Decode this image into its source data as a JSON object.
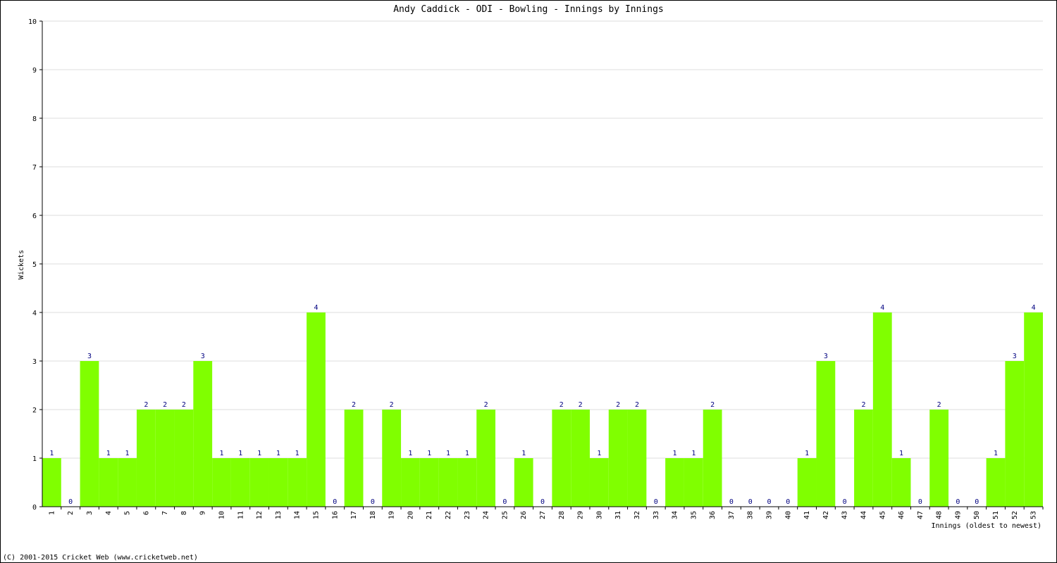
{
  "chart_data": {
    "type": "bar",
    "title": "Andy Caddick - ODI - Bowling - Innings by Innings",
    "y_label": "Wickets",
    "x_label": "Innings (oldest to newest)",
    "footer": "(C) 2001-2015 Cricket Web (www.cricketweb.net)",
    "categories": [
      "1",
      "2",
      "3",
      "4",
      "5",
      "6",
      "7",
      "8",
      "9",
      "10",
      "11",
      "12",
      "13",
      "14",
      "15",
      "16",
      "17",
      "18",
      "19",
      "20",
      "21",
      "22",
      "23",
      "24",
      "25",
      "26",
      "27",
      "28",
      "29",
      "30",
      "31",
      "32",
      "33",
      "34",
      "35",
      "36",
      "37",
      "38",
      "39",
      "40",
      "41",
      "42",
      "43",
      "44",
      "45",
      "46",
      "47",
      "48",
      "49",
      "50",
      "51",
      "52",
      "53"
    ],
    "values": [
      1,
      0,
      3,
      1,
      1,
      2,
      2,
      2,
      3,
      1,
      1,
      1,
      1,
      1,
      4,
      0,
      2,
      0,
      2,
      1,
      1,
      1,
      1,
      2,
      0,
      1,
      0,
      2,
      2,
      1,
      2,
      2,
      0,
      1,
      1,
      2,
      0,
      0,
      0,
      0,
      1,
      3,
      0,
      2,
      4,
      1,
      0,
      2,
      0,
      0,
      1,
      3,
      4
    ],
    "color": "#80ff00",
    "label_color": "#000080",
    "ylim": [
      0,
      10
    ],
    "yticks": [
      0,
      1,
      2,
      3,
      4,
      5,
      6,
      7,
      8,
      9,
      10
    ],
    "grid": true
  }
}
